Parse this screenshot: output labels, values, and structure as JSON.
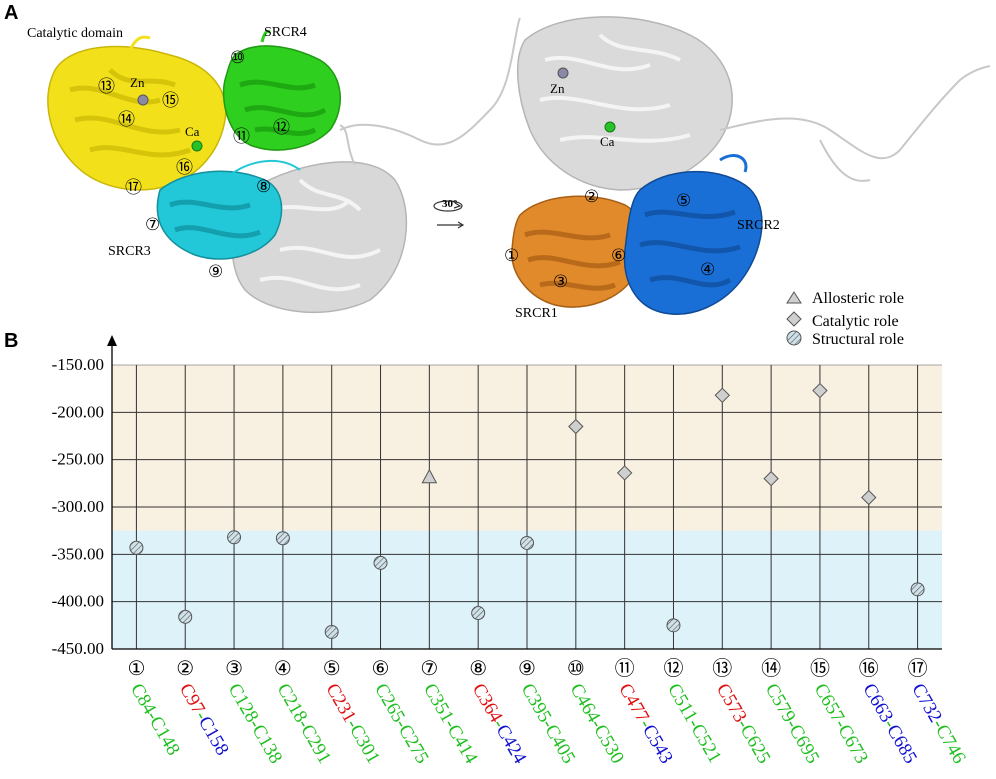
{
  "panel_a": {
    "letter": "A",
    "labels": {
      "catalytic_domain": "Catalytic domain",
      "srcr4": "SRCR4",
      "srcr3": "SRCR3",
      "srcr2": "SRCR2",
      "srcr1": "SRCR1",
      "zn_left": "Zn",
      "ca_left": "Ca",
      "zn_right": "Zn",
      "ca_right": "Ca",
      "rotation": "30°"
    },
    "site_markers_left": [
      "⑦",
      "⑧",
      "⑨",
      "⑩",
      "⑪",
      "⑫",
      "⑬",
      "⑭",
      "⑮",
      "⑯",
      "⑰"
    ],
    "site_markers_right": [
      "①",
      "②",
      "③",
      "④",
      "⑤",
      "⑥"
    ],
    "colors": {
      "catalytic": "#f2e11a",
      "srcr4": "#2fcf1f",
      "srcr3": "#22c8d8",
      "srcr2": "#1a6fd6",
      "srcr1": "#e08a2c",
      "gray": "#d4d4d4"
    },
    "legend": [
      {
        "label": "Allosteric role",
        "marker": "triangle"
      },
      {
        "label": "Catalytic role",
        "marker": "diamond"
      },
      {
        "label": "Structural role",
        "marker": "hatched-circle"
      }
    ]
  },
  "panel_b": {
    "letter": "B",
    "chart_data": {
      "type": "scatter",
      "ylim": [
        -450,
        -150
      ],
      "yticks": [
        "-150.00",
        "-200.00",
        "-250.00",
        "-300.00",
        "-350.00",
        "-400.00",
        "-450.00"
      ],
      "ytick_values": [
        -150,
        -200,
        -250,
        -300,
        -350,
        -400,
        -450
      ],
      "region_boundary": -325,
      "region_colors": {
        "upper": "#f8f0e0",
        "lower": "#def2fa"
      },
      "categories": [
        {
          "num": "①",
          "label": [
            {
              "t": "C84",
              "c": "g"
            },
            {
              "t": "-",
              "c": "g"
            },
            {
              "t": "C148",
              "c": "g"
            }
          ],
          "value": -343,
          "role": "structural"
        },
        {
          "num": "②",
          "label": [
            {
              "t": "C97",
              "c": "r"
            },
            {
              "t": "-",
              "c": "g"
            },
            {
              "t": "C158",
              "c": "b"
            }
          ],
          "value": -416,
          "role": "structural"
        },
        {
          "num": "③",
          "label": [
            {
              "t": "C128",
              "c": "g"
            },
            {
              "t": "-",
              "c": "g"
            },
            {
              "t": "C138",
              "c": "g"
            }
          ],
          "value": -332,
          "role": "structural"
        },
        {
          "num": "④",
          "label": [
            {
              "t": "C218",
              "c": "g"
            },
            {
              "t": "-",
              "c": "g"
            },
            {
              "t": "C291",
              "c": "g"
            }
          ],
          "value": -333,
          "role": "structural"
        },
        {
          "num": "⑤",
          "label": [
            {
              "t": "C231",
              "c": "r"
            },
            {
              "t": "-",
              "c": "g"
            },
            {
              "t": "C301",
              "c": "g"
            }
          ],
          "value": -432,
          "role": "structural"
        },
        {
          "num": "⑥",
          "label": [
            {
              "t": "C265",
              "c": "g"
            },
            {
              "t": "-",
              "c": "g"
            },
            {
              "t": "C275",
              "c": "g"
            }
          ],
          "value": -359,
          "role": "structural"
        },
        {
          "num": "⑦",
          "label": [
            {
              "t": "C351",
              "c": "g"
            },
            {
              "t": "-",
              "c": "g"
            },
            {
              "t": "C414",
              "c": "g"
            }
          ],
          "value": -268,
          "role": "allosteric"
        },
        {
          "num": "⑧",
          "label": [
            {
              "t": "C364",
              "c": "r"
            },
            {
              "t": "-",
              "c": "g"
            },
            {
              "t": "C424",
              "c": "b"
            }
          ],
          "value": -412,
          "role": "structural"
        },
        {
          "num": "⑨",
          "label": [
            {
              "t": "C395",
              "c": "g"
            },
            {
              "t": "-",
              "c": "g"
            },
            {
              "t": "C405",
              "c": "g"
            }
          ],
          "value": -338,
          "role": "structural"
        },
        {
          "num": "⑩",
          "label": [
            {
              "t": "C464",
              "c": "g"
            },
            {
              "t": "-",
              "c": "g"
            },
            {
              "t": "C530",
              "c": "g"
            }
          ],
          "value": -215,
          "role": "catalytic"
        },
        {
          "num": "⑪",
          "label": [
            {
              "t": "C477",
              "c": "r"
            },
            {
              "t": "-",
              "c": "g"
            },
            {
              "t": "C543",
              "c": "b"
            }
          ],
          "value": -264,
          "role": "catalytic"
        },
        {
          "num": "⑫",
          "label": [
            {
              "t": "C511",
              "c": "g"
            },
            {
              "t": "-",
              "c": "g"
            },
            {
              "t": "C521",
              "c": "g"
            }
          ],
          "value": -425,
          "role": "structural"
        },
        {
          "num": "⑬",
          "label": [
            {
              "t": "C573",
              "c": "r"
            },
            {
              "t": "-",
              "c": "g"
            },
            {
              "t": "C625",
              "c": "g"
            }
          ],
          "value": -182,
          "role": "catalytic"
        },
        {
          "num": "⑭",
          "label": [
            {
              "t": "C579",
              "c": "g"
            },
            {
              "t": "-",
              "c": "g"
            },
            {
              "t": "C695",
              "c": "g"
            }
          ],
          "value": -270,
          "role": "catalytic"
        },
        {
          "num": "⑮",
          "label": [
            {
              "t": "C657",
              "c": "g"
            },
            {
              "t": "-",
              "c": "g"
            },
            {
              "t": "C673",
              "c": "g"
            }
          ],
          "value": -177,
          "role": "catalytic"
        },
        {
          "num": "⑯",
          "label": [
            {
              "t": "C663",
              "c": "b"
            },
            {
              "t": "-",
              "c": "g"
            },
            {
              "t": "C685",
              "c": "b"
            }
          ],
          "value": -290,
          "role": "catalytic"
        },
        {
          "num": "⑰",
          "label": [
            {
              "t": "C732",
              "c": "b"
            },
            {
              "t": "-",
              "c": "g"
            },
            {
              "t": "C746",
              "c": "g"
            }
          ],
          "value": -387,
          "role": "structural"
        }
      ],
      "label_colors": {
        "g": "#1fbf1f",
        "r": "#e01010",
        "b": "#1010d0"
      }
    }
  }
}
